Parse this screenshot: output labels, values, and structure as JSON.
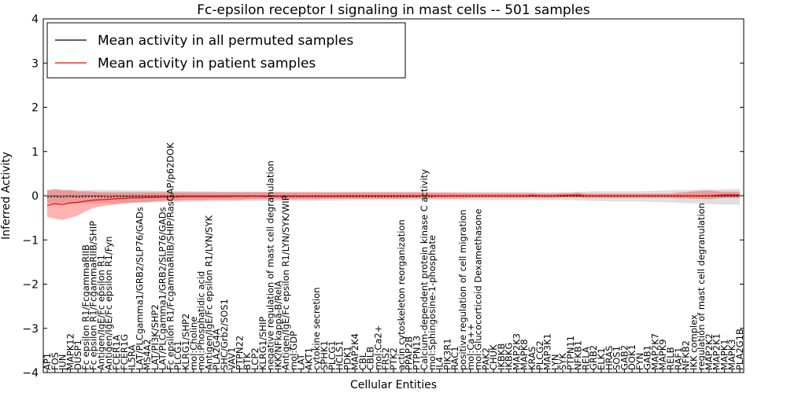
{
  "chart_data": {
    "type": "line",
    "title": "Fc-epsilon receptor I signaling in mast cells -- 501 samples",
    "xlabel": "Cellular Entities",
    "ylabel": "Inferred Activity",
    "ylim": [
      -4,
      4
    ],
    "yticks": [
      -4,
      -3,
      -2,
      -1,
      0,
      1,
      2,
      3,
      4
    ],
    "legend_position": "top-left",
    "categories": [
      "AP1",
      "FOS",
      "JUN",
      "MAPK12",
      "DUSP1",
      "Fc epsilon R1/FcgammaRIIB",
      "Fc epsilon R1/FcgammaRIIB/SHIP",
      "Antigen/IgE/Fc epsilon R1",
      "Antigen/IgE/Fc epsilon R1/Fyn",
      "FCER1A",
      "FCER1G",
      "IL5RA",
      "LAT/PLCgamma1/GRB2/SLP76/GADs",
      "MS4A2",
      "LAT/PI3K/SHP2",
      "LAT/PLCgamma1/GRB2/SLP76/GADs",
      "Fc epsilon R1/FcgammaRIIB/SHIP/RasGAP/p62DOK",
      "PLCG1",
      "KLRG1/SHP2",
      "mol:Choline",
      "mol:Phosphatidic acid",
      "Antigen/IgE/Fc epsilon R1/LYN/SYK",
      "PLA2G4A",
      "SHC/Grb2/SOS1",
      "VAV1",
      "PTPN22",
      "BTK",
      "LCP2",
      "KLRG1/SHIP",
      "negative regulation of mast cell degranulation",
      "IKK/NFkappa-B/RelA",
      "Antigen/IgE/Fc epsilon R1/LYN/SYK/WIP",
      "mol:GDP",
      "LAT",
      "AKT1",
      "cytokine secretion",
      "SPHK1",
      "PLCG1",
      "HCLS1",
      "PDK1",
      "MAP2K4",
      "CBL",
      "CBLB",
      "mol:Ca2+",
      "FRS2",
      "PTK2",
      "actin cytoskeleton reorganization",
      "PPAP2B",
      "PTPN13",
      "Calcium-dependent protein kinase C activity",
      "mol:Sphingosine-1-phosphate",
      "IL4",
      "PIK3R1",
      "RAC1",
      "positive regulation of cell migration",
      "mol:Ca++",
      "mol:Glucocorticoid Dexamethasone",
      "PAK2",
      "CHUK",
      "IKBKB",
      "IKBKG",
      "MAP2K3",
      "MAPK8",
      "KRAS",
      "PLCG2",
      "MAP3K1",
      "LYN",
      "SYK",
      "PTPN11",
      "NFKB1",
      "RELA",
      "GRB2",
      "ELK1",
      "HRAS",
      "SOS1",
      "GAB2",
      "DOK1",
      "FYN",
      "GAB1",
      "MAP2K7",
      "MAPK9",
      "RELB",
      "RAF1",
      "NFKB2",
      "IKK complex",
      "regulation of mast cell degranulation",
      "MAP2K2",
      "MAP2K1",
      "MAPK1",
      "MAPK3",
      "PLA2G1B"
    ],
    "series": [
      {
        "name": "Mean activity in all permuted samples",
        "color": "#000000",
        "values": [
          -0.03,
          -0.02,
          -0.03,
          -0.02,
          -0.03,
          -0.02,
          -0.02,
          -0.02,
          -0.03,
          -0.02,
          -0.02,
          -0.02,
          -0.02,
          -0.02,
          -0.02,
          -0.02,
          -0.02,
          -0.02,
          -0.02,
          -0.02,
          -0.02,
          -0.02,
          -0.02,
          -0.02,
          -0.02,
          -0.01,
          -0.02,
          -0.01,
          -0.02,
          -0.02,
          -0.02,
          -0.02,
          -0.02,
          -0.02,
          -0.02,
          -0.02,
          -0.02,
          -0.02,
          -0.02,
          -0.02,
          -0.02,
          -0.02,
          -0.02,
          -0.02,
          -0.02,
          -0.02,
          -0.02,
          -0.02,
          -0.02,
          -0.01,
          -0.02,
          -0.01,
          -0.01,
          -0.01,
          -0.01,
          -0.01,
          -0.01,
          -0.01,
          -0.01,
          -0.01,
          -0.01,
          -0.01,
          -0.01,
          -0.01,
          -0.01,
          -0.01,
          -0.01,
          -0.01,
          -0.01,
          -0.01,
          -0.01,
          -0.01,
          -0.01,
          -0.01,
          -0.01,
          -0.01,
          -0.01,
          -0.01,
          -0.01,
          -0.01,
          -0.01,
          -0.01,
          -0.01,
          -0.01,
          -0.01,
          -0.01,
          -0.01,
          -0.01,
          -0.01,
          -0.01,
          -0.01
        ],
        "band_low": [
          -0.17,
          -0.18,
          -0.17,
          -0.18,
          -0.17,
          -0.17,
          -0.17,
          -0.17,
          -0.17,
          -0.17,
          -0.16,
          -0.16,
          -0.16,
          -0.16,
          -0.15,
          -0.15,
          -0.15,
          -0.15,
          -0.14,
          -0.14,
          -0.14,
          -0.14,
          -0.13,
          -0.13,
          -0.13,
          -0.12,
          -0.12,
          -0.12,
          -0.12,
          -0.12,
          -0.12,
          -0.11,
          -0.11,
          -0.11,
          -0.11,
          -0.11,
          -0.11,
          -0.11,
          -0.11,
          -0.11,
          -0.1,
          -0.1,
          -0.1,
          -0.1,
          -0.1,
          -0.1,
          -0.1,
          -0.1,
          -0.1,
          -0.1,
          -0.1,
          -0.1,
          -0.1,
          -0.1,
          -0.1,
          -0.1,
          -0.1,
          -0.1,
          -0.1,
          -0.1,
          -0.1,
          -0.1,
          -0.1,
          -0.1,
          -0.1,
          -0.1,
          -0.1,
          -0.1,
          -0.1,
          -0.11,
          -0.11,
          -0.12,
          -0.12,
          -0.13,
          -0.13,
          -0.13,
          -0.13,
          -0.13,
          -0.14,
          -0.14,
          -0.15,
          -0.15,
          -0.16,
          -0.17,
          -0.17,
          -0.18,
          -0.19,
          -0.19,
          -0.2,
          -0.2,
          -0.21
        ],
        "band_high": [
          0.13,
          0.14,
          0.13,
          0.14,
          0.13,
          0.13,
          0.13,
          0.13,
          0.13,
          0.13,
          0.12,
          0.12,
          0.12,
          0.12,
          0.11,
          0.11,
          0.11,
          0.11,
          0.1,
          0.1,
          0.1,
          0.1,
          0.09,
          0.09,
          0.09,
          0.09,
          0.09,
          0.09,
          0.09,
          0.09,
          0.09,
          0.08,
          0.08,
          0.08,
          0.08,
          0.08,
          0.08,
          0.08,
          0.08,
          0.08,
          0.08,
          0.08,
          0.08,
          0.08,
          0.08,
          0.08,
          0.08,
          0.08,
          0.08,
          0.08,
          0.08,
          0.08,
          0.08,
          0.08,
          0.08,
          0.08,
          0.08,
          0.08,
          0.08,
          0.08,
          0.08,
          0.08,
          0.08,
          0.08,
          0.08,
          0.08,
          0.08,
          0.08,
          0.08,
          0.09,
          0.09,
          0.1,
          0.1,
          0.1,
          0.1,
          0.1,
          0.1,
          0.1,
          0.11,
          0.11,
          0.12,
          0.12,
          0.13,
          0.13,
          0.13,
          0.14,
          0.14,
          0.14,
          0.15,
          0.15,
          0.15
        ]
      },
      {
        "name": "Mean activity in patient samples",
        "color": "#ff0000",
        "values": [
          -0.22,
          -0.18,
          -0.2,
          -0.16,
          -0.15,
          -0.12,
          -0.1,
          -0.09,
          -0.08,
          -0.07,
          -0.06,
          -0.05,
          -0.05,
          -0.04,
          -0.04,
          -0.03,
          -0.03,
          -0.03,
          -0.02,
          -0.02,
          -0.02,
          -0.02,
          -0.02,
          -0.02,
          -0.01,
          -0.01,
          -0.01,
          -0.01,
          -0.01,
          -0.01,
          -0.01,
          -0.01,
          -0.01,
          -0.01,
          -0.01,
          0.0,
          -0.01,
          -0.01,
          0.0,
          0.0,
          0.0,
          0.0,
          0.0,
          0.0,
          0.0,
          0.0,
          0.0,
          0.0,
          0.0,
          0.0,
          0.0,
          0.0,
          0.0,
          0.0,
          0.0,
          0.0,
          0.0,
          0.0,
          0.0,
          0.0,
          0.0,
          0.0,
          0.0,
          0.01,
          0.0,
          0.0,
          0.0,
          0.01,
          0.01,
          0.02,
          0.0,
          0.0,
          0.0,
          0.0,
          0.0,
          0.0,
          0.0,
          0.0,
          0.0,
          0.0,
          0.0,
          0.0,
          0.0,
          0.0,
          0.0,
          0.0,
          0.0,
          0.01,
          0.02,
          0.02,
          0.02
        ],
        "band_low": [
          -0.48,
          -0.52,
          -0.55,
          -0.5,
          -0.45,
          -0.35,
          -0.28,
          -0.24,
          -0.22,
          -0.2,
          -0.18,
          -0.16,
          -0.15,
          -0.14,
          -0.13,
          -0.12,
          -0.11,
          -0.11,
          -0.1,
          -0.1,
          -0.1,
          -0.09,
          -0.09,
          -0.09,
          -0.09,
          -0.09,
          -0.08,
          -0.08,
          -0.08,
          -0.08,
          -0.08,
          -0.08,
          -0.08,
          -0.08,
          -0.08,
          -0.08,
          -0.07,
          -0.07,
          -0.07,
          -0.07,
          -0.07,
          -0.07,
          -0.07,
          -0.07,
          -0.07,
          -0.07,
          -0.07,
          -0.06,
          -0.06,
          -0.06,
          -0.06,
          -0.06,
          -0.06,
          -0.06,
          -0.06,
          -0.05,
          -0.05,
          -0.05,
          -0.05,
          -0.05,
          -0.05,
          -0.05,
          -0.05,
          -0.04,
          -0.05,
          -0.05,
          -0.05,
          -0.04,
          -0.04,
          -0.04,
          -0.05,
          -0.05,
          -0.05,
          -0.05,
          -0.05,
          -0.05,
          -0.05,
          -0.05,
          -0.05,
          -0.05,
          -0.05,
          -0.05,
          -0.06,
          -0.06,
          -0.07,
          -0.07,
          -0.08,
          -0.06,
          -0.05,
          -0.05,
          -0.05
        ],
        "band_high": [
          0.12,
          0.15,
          0.13,
          0.12,
          0.1,
          0.1,
          0.09,
          0.08,
          0.08,
          0.08,
          0.08,
          0.08,
          0.08,
          0.08,
          0.08,
          0.08,
          0.08,
          0.08,
          0.08,
          0.08,
          0.08,
          0.08,
          0.08,
          0.08,
          0.08,
          0.08,
          0.08,
          0.08,
          0.08,
          0.08,
          0.08,
          0.08,
          0.08,
          0.08,
          0.08,
          0.08,
          0.08,
          0.08,
          0.08,
          0.08,
          0.08,
          0.08,
          0.08,
          0.08,
          0.08,
          0.08,
          0.08,
          0.08,
          0.08,
          0.07,
          0.07,
          0.07,
          0.07,
          0.07,
          0.06,
          0.06,
          0.06,
          0.06,
          0.06,
          0.06,
          0.06,
          0.06,
          0.06,
          0.06,
          0.05,
          0.05,
          0.05,
          0.06,
          0.06,
          0.07,
          0.05,
          0.05,
          0.05,
          0.05,
          0.05,
          0.05,
          0.05,
          0.05,
          0.05,
          0.05,
          0.05,
          0.05,
          0.07,
          0.08,
          0.1,
          0.11,
          0.12,
          0.1,
          0.09,
          0.09,
          0.09
        ]
      }
    ]
  },
  "legend": {
    "permuted_label": "Mean activity in all permuted samples",
    "patient_label": "Mean activity in patient samples"
  }
}
